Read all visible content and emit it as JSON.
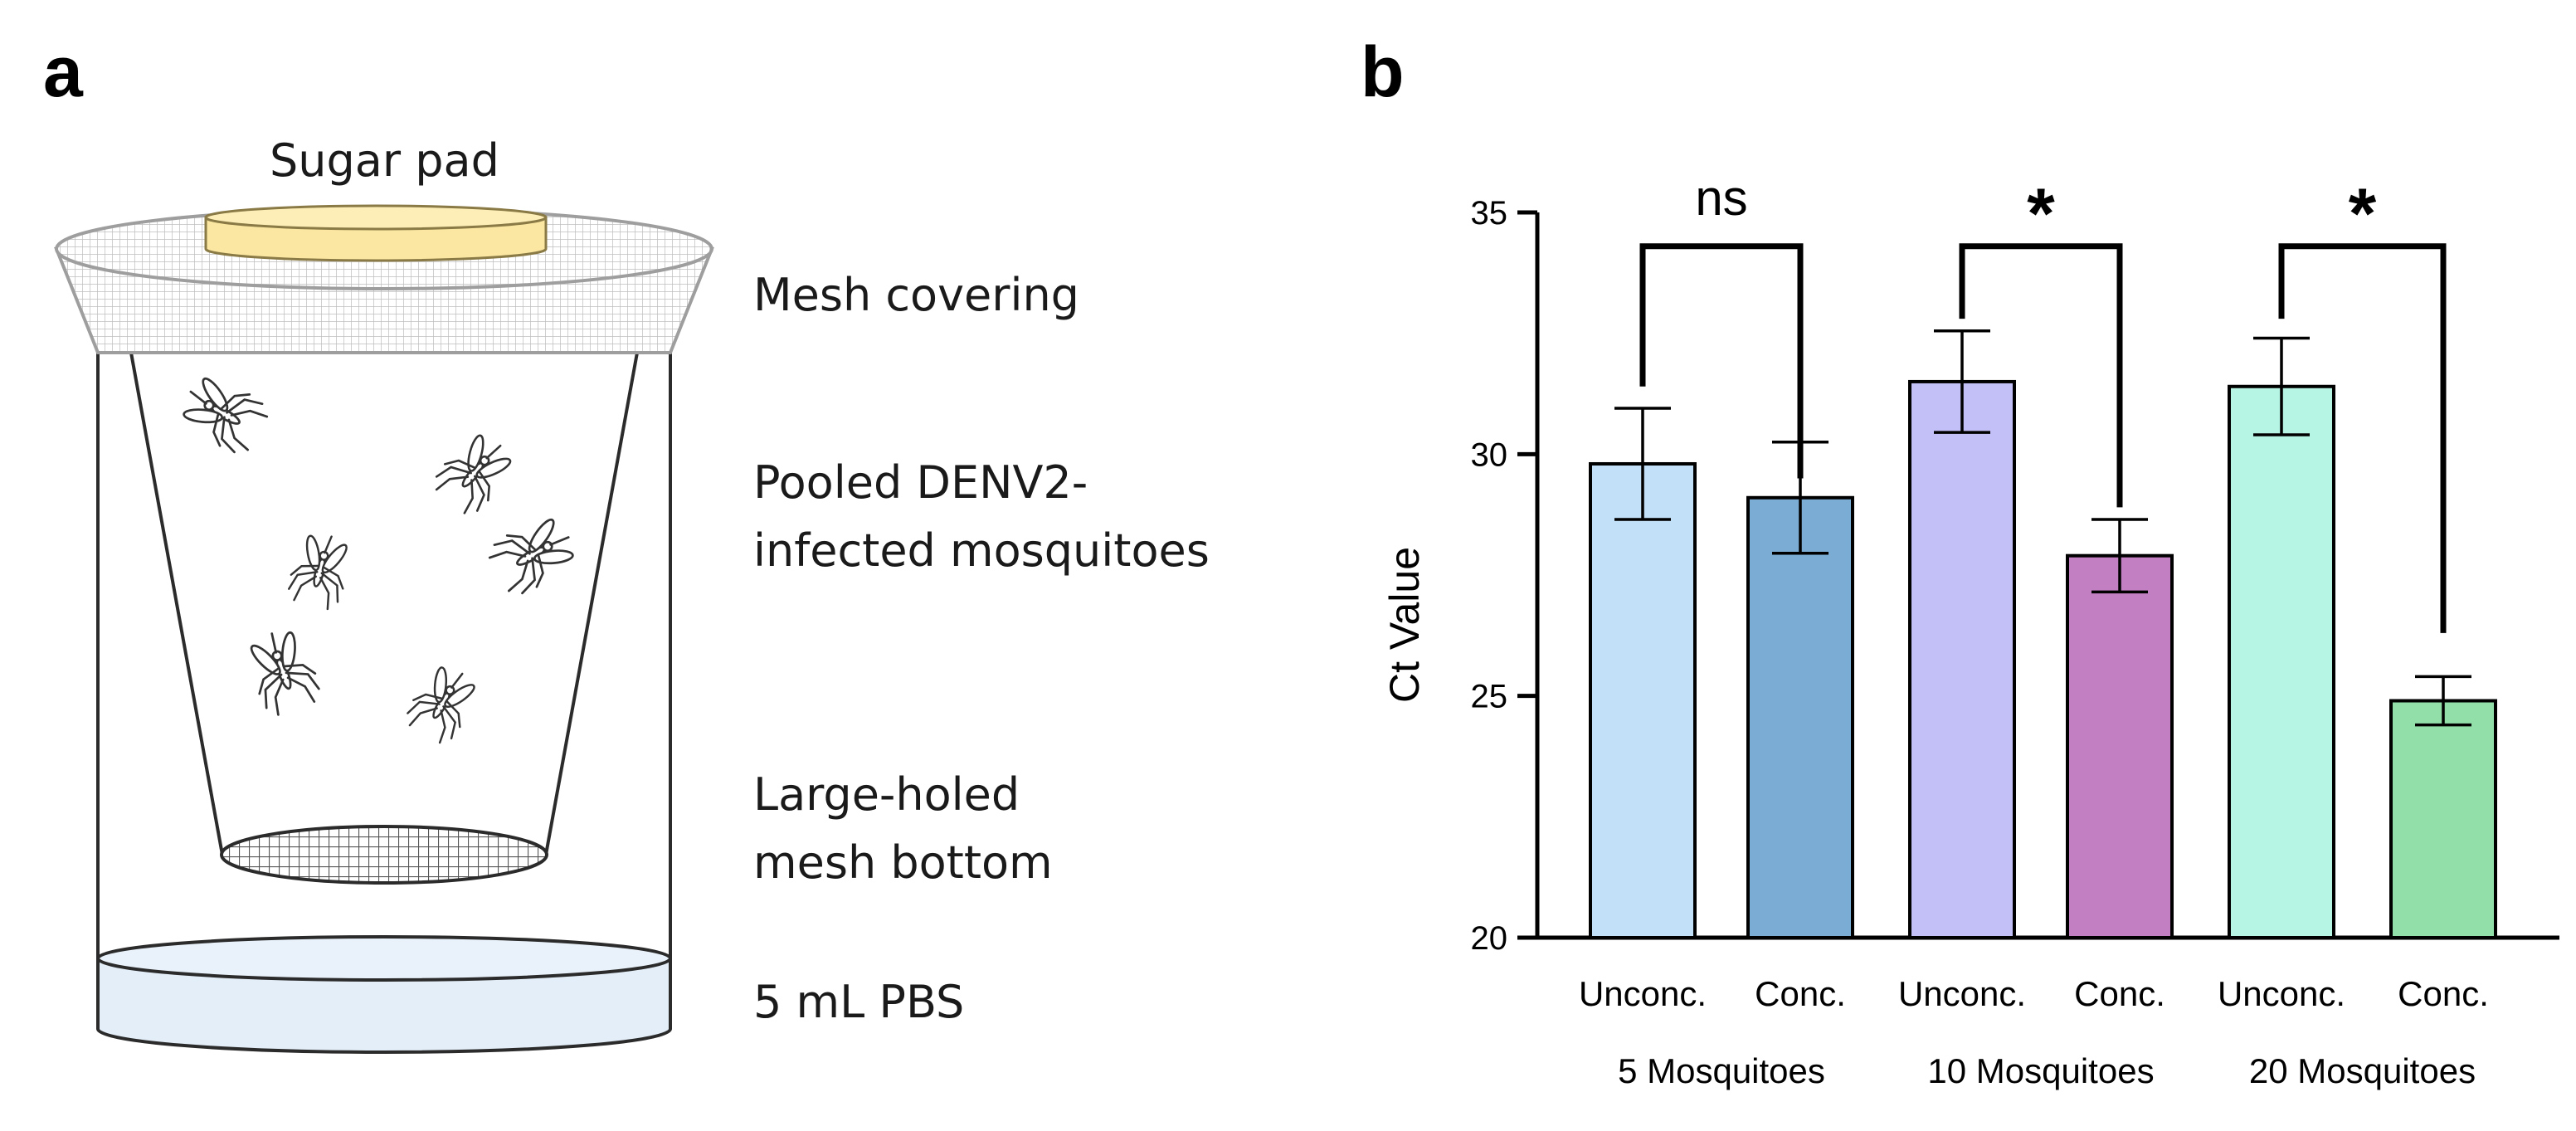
{
  "panel_a": {
    "letter": "a",
    "labels": {
      "sugar_pad": "Sugar pad",
      "mesh_covering": "Mesh covering",
      "pooled_line1": "Pooled DENV2-",
      "pooled_line2": "infected mosquitoes",
      "large_holed_line1": "Large-holed",
      "large_holed_line2": "mesh bottom",
      "pbs": "5 mL PBS"
    },
    "colors": {
      "sugar_pad": "#fbe7a1",
      "mesh_cover": "#f2f2f2",
      "pbs_liquid": "#e3eef8",
      "outline": "#2b2b2b"
    }
  },
  "panel_b": {
    "letter": "b"
  },
  "chart_data": {
    "type": "bar",
    "title": "",
    "ylabel": "Ct Value",
    "xlabel": "",
    "ylim": [
      20,
      35
    ],
    "yticks": [
      20,
      25,
      30,
      35
    ],
    "categories": [
      "Unconc.",
      "Conc.",
      "Unconc.",
      "Conc.",
      "Unconc.",
      "Conc."
    ],
    "groups": [
      "5 Mosquitoes",
      "10 Mosquitoes",
      "20 Mosquitoes"
    ],
    "values": [
      29.8,
      29.1,
      31.5,
      27.9,
      31.4,
      24.9
    ],
    "errors": [
      1.15,
      1.15,
      1.05,
      0.75,
      1.0,
      0.5
    ],
    "colors": [
      "#c2e0f8",
      "#7bacd3",
      "#c3c0f7",
      "#c27fc2",
      "#b6f4e4",
      "#92dfa9"
    ],
    "significance": [
      {
        "label": "ns",
        "left_bar": 0,
        "right_bar": 1,
        "left_tip": 31.4,
        "right_tip": 29.5,
        "top": 35.0
      },
      {
        "label": "*",
        "left_bar": 2,
        "right_bar": 3,
        "left_tip": 32.8,
        "right_tip": 28.9,
        "top": 35.0
      },
      {
        "label": "*",
        "left_bar": 4,
        "right_bar": 5,
        "left_tip": 32.8,
        "right_tip": 26.3,
        "top": 35.0
      }
    ]
  }
}
